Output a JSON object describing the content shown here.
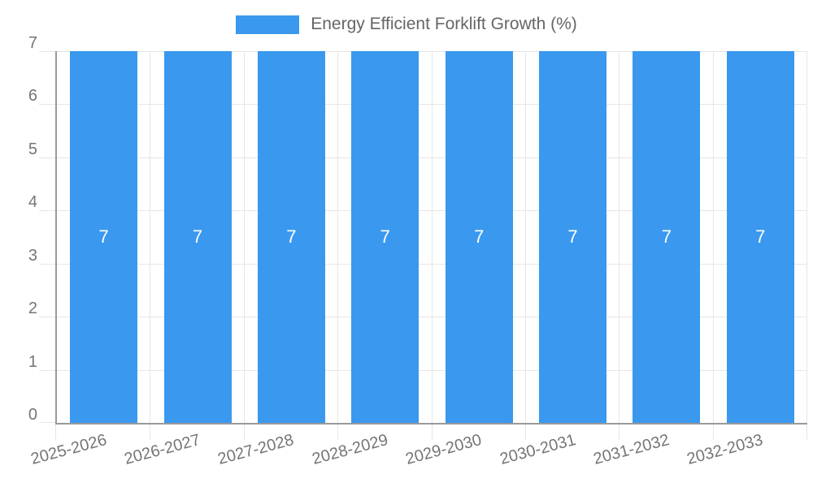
{
  "legend": {
    "label": "Energy Efficient Forklift Growth (%)",
    "swatch_color": "#3a99ee"
  },
  "chart_data": {
    "type": "bar",
    "title": "Energy Efficient Forklift Growth (%)",
    "series": [
      {
        "name": "Energy Efficient Forklift Growth (%)",
        "values": [
          7,
          7,
          7,
          7,
          7,
          7,
          7,
          7
        ],
        "data_labels": [
          "7",
          "7",
          "7",
          "7",
          "7",
          "7",
          "7",
          "7"
        ],
        "color": "#3a99ee"
      }
    ],
    "categories": [
      "2025-2026",
      "2026-2027",
      "2027-2028",
      "2028-2029",
      "2029-2030",
      "2030-2031",
      "2031-2032",
      "2032-2033"
    ],
    "xlabel": "",
    "ylabel": "",
    "ylim": [
      0,
      7
    ],
    "yticks": [
      0,
      1,
      2,
      3,
      4,
      5,
      6,
      7
    ],
    "grid": true,
    "legend_position": "top",
    "x_label_rotation_deg": -15,
    "bar_slot_fraction": 0.72
  },
  "colors": {
    "bar": "#3a99ee",
    "bar_label": "#ffffff",
    "gridline": "#e6e6e6",
    "axis_line": "#9a9a9a",
    "tick_label": "#757575",
    "legend_text": "#666666",
    "background": "#ffffff"
  }
}
